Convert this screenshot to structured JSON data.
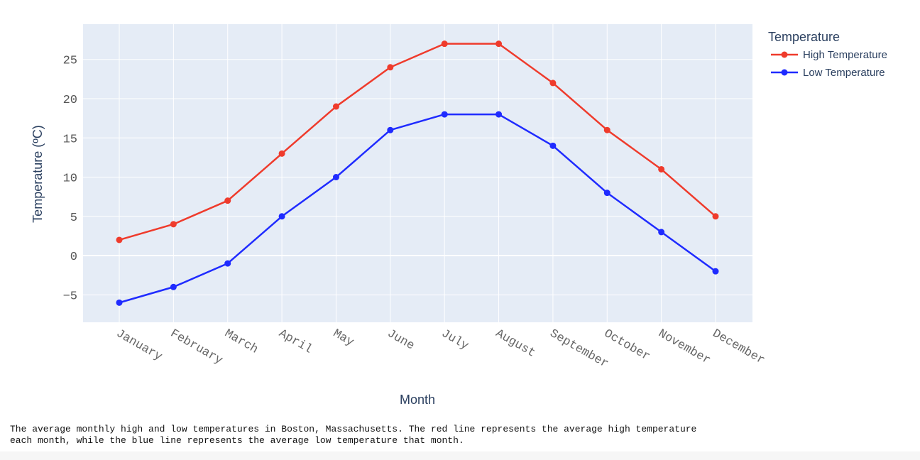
{
  "chart_data": {
    "type": "line",
    "categories": [
      "January",
      "February",
      "March",
      "April",
      "May",
      "June",
      "July",
      "August",
      "September",
      "October",
      "November",
      "December"
    ],
    "series": [
      {
        "name": "High Temperature",
        "color": "#ef3b2c",
        "values": [
          2,
          4,
          7,
          13,
          19,
          24,
          27,
          27,
          22,
          16,
          11,
          5
        ]
      },
      {
        "name": "Low Temperature",
        "color": "#1f2bff",
        "values": [
          -6,
          -4,
          -1,
          5,
          10,
          16,
          18,
          18,
          14,
          8,
          3,
          -2
        ]
      }
    ],
    "xlabel": "Month",
    "ylabel": "Temperature (ºC)",
    "ylim": [
      -8.5,
      29.5
    ],
    "yticks": [
      -5,
      0,
      5,
      10,
      15,
      20,
      25
    ],
    "ytick_labels": [
      "−5",
      "0",
      "5",
      "10",
      "15",
      "20",
      "25"
    ],
    "legend": {
      "title": "Temperature",
      "position": "top-right"
    },
    "grid": true,
    "plot_bg": "#e5ecf6"
  },
  "caption": "The average monthly high and low temperatures in Boston, Massachusetts. The red line represents the average high temperature each month, while the blue line represents the average low temperature that month."
}
